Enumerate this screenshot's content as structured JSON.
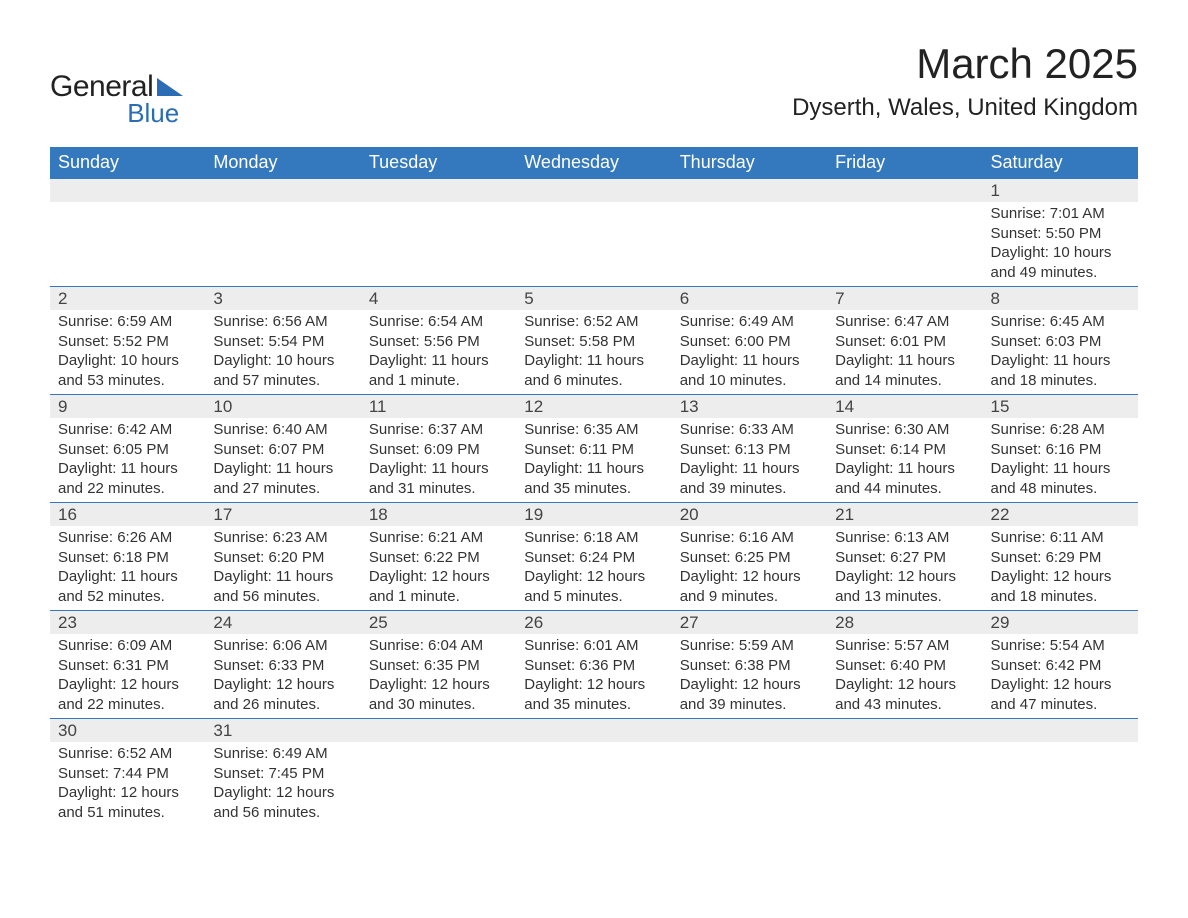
{
  "brand": {
    "word1": "General",
    "word2": "Blue",
    "accent_color": "#2a6db4"
  },
  "title": "March 2025",
  "location": "Dyserth, Wales, United Kingdom",
  "colors": {
    "header_bg": "#3478bd",
    "header_text": "#ffffff",
    "daynum_bg": "#ededed",
    "text": "#333333",
    "row_border": "#3478bd",
    "page_bg": "#ffffff"
  },
  "fonts": {
    "base_family": "Arial",
    "month_title_size_pt": 32,
    "location_size_pt": 18,
    "weekday_size_pt": 14,
    "daynum_size_pt": 13,
    "data_size_pt": 11
  },
  "calendar": {
    "type": "table",
    "columns": [
      "Sunday",
      "Monday",
      "Tuesday",
      "Wednesday",
      "Thursday",
      "Friday",
      "Saturday"
    ],
    "weeks": [
      [
        null,
        null,
        null,
        null,
        null,
        null,
        {
          "num": "1",
          "sunrise": "Sunrise: 7:01 AM",
          "sunset": "Sunset: 5:50 PM",
          "day1": "Daylight: 10 hours",
          "day2": "and 49 minutes."
        }
      ],
      [
        {
          "num": "2",
          "sunrise": "Sunrise: 6:59 AM",
          "sunset": "Sunset: 5:52 PM",
          "day1": "Daylight: 10 hours",
          "day2": "and 53 minutes."
        },
        {
          "num": "3",
          "sunrise": "Sunrise: 6:56 AM",
          "sunset": "Sunset: 5:54 PM",
          "day1": "Daylight: 10 hours",
          "day2": "and 57 minutes."
        },
        {
          "num": "4",
          "sunrise": "Sunrise: 6:54 AM",
          "sunset": "Sunset: 5:56 PM",
          "day1": "Daylight: 11 hours",
          "day2": "and 1 minute."
        },
        {
          "num": "5",
          "sunrise": "Sunrise: 6:52 AM",
          "sunset": "Sunset: 5:58 PM",
          "day1": "Daylight: 11 hours",
          "day2": "and 6 minutes."
        },
        {
          "num": "6",
          "sunrise": "Sunrise: 6:49 AM",
          "sunset": "Sunset: 6:00 PM",
          "day1": "Daylight: 11 hours",
          "day2": "and 10 minutes."
        },
        {
          "num": "7",
          "sunrise": "Sunrise: 6:47 AM",
          "sunset": "Sunset: 6:01 PM",
          "day1": "Daylight: 11 hours",
          "day2": "and 14 minutes."
        },
        {
          "num": "8",
          "sunrise": "Sunrise: 6:45 AM",
          "sunset": "Sunset: 6:03 PM",
          "day1": "Daylight: 11 hours",
          "day2": "and 18 minutes."
        }
      ],
      [
        {
          "num": "9",
          "sunrise": "Sunrise: 6:42 AM",
          "sunset": "Sunset: 6:05 PM",
          "day1": "Daylight: 11 hours",
          "day2": "and 22 minutes."
        },
        {
          "num": "10",
          "sunrise": "Sunrise: 6:40 AM",
          "sunset": "Sunset: 6:07 PM",
          "day1": "Daylight: 11 hours",
          "day2": "and 27 minutes."
        },
        {
          "num": "11",
          "sunrise": "Sunrise: 6:37 AM",
          "sunset": "Sunset: 6:09 PM",
          "day1": "Daylight: 11 hours",
          "day2": "and 31 minutes."
        },
        {
          "num": "12",
          "sunrise": "Sunrise: 6:35 AM",
          "sunset": "Sunset: 6:11 PM",
          "day1": "Daylight: 11 hours",
          "day2": "and 35 minutes."
        },
        {
          "num": "13",
          "sunrise": "Sunrise: 6:33 AM",
          "sunset": "Sunset: 6:13 PM",
          "day1": "Daylight: 11 hours",
          "day2": "and 39 minutes."
        },
        {
          "num": "14",
          "sunrise": "Sunrise: 6:30 AM",
          "sunset": "Sunset: 6:14 PM",
          "day1": "Daylight: 11 hours",
          "day2": "and 44 minutes."
        },
        {
          "num": "15",
          "sunrise": "Sunrise: 6:28 AM",
          "sunset": "Sunset: 6:16 PM",
          "day1": "Daylight: 11 hours",
          "day2": "and 48 minutes."
        }
      ],
      [
        {
          "num": "16",
          "sunrise": "Sunrise: 6:26 AM",
          "sunset": "Sunset: 6:18 PM",
          "day1": "Daylight: 11 hours",
          "day2": "and 52 minutes."
        },
        {
          "num": "17",
          "sunrise": "Sunrise: 6:23 AM",
          "sunset": "Sunset: 6:20 PM",
          "day1": "Daylight: 11 hours",
          "day2": "and 56 minutes."
        },
        {
          "num": "18",
          "sunrise": "Sunrise: 6:21 AM",
          "sunset": "Sunset: 6:22 PM",
          "day1": "Daylight: 12 hours",
          "day2": "and 1 minute."
        },
        {
          "num": "19",
          "sunrise": "Sunrise: 6:18 AM",
          "sunset": "Sunset: 6:24 PM",
          "day1": "Daylight: 12 hours",
          "day2": "and 5 minutes."
        },
        {
          "num": "20",
          "sunrise": "Sunrise: 6:16 AM",
          "sunset": "Sunset: 6:25 PM",
          "day1": "Daylight: 12 hours",
          "day2": "and 9 minutes."
        },
        {
          "num": "21",
          "sunrise": "Sunrise: 6:13 AM",
          "sunset": "Sunset: 6:27 PM",
          "day1": "Daylight: 12 hours",
          "day2": "and 13 minutes."
        },
        {
          "num": "22",
          "sunrise": "Sunrise: 6:11 AM",
          "sunset": "Sunset: 6:29 PM",
          "day1": "Daylight: 12 hours",
          "day2": "and 18 minutes."
        }
      ],
      [
        {
          "num": "23",
          "sunrise": "Sunrise: 6:09 AM",
          "sunset": "Sunset: 6:31 PM",
          "day1": "Daylight: 12 hours",
          "day2": "and 22 minutes."
        },
        {
          "num": "24",
          "sunrise": "Sunrise: 6:06 AM",
          "sunset": "Sunset: 6:33 PM",
          "day1": "Daylight: 12 hours",
          "day2": "and 26 minutes."
        },
        {
          "num": "25",
          "sunrise": "Sunrise: 6:04 AM",
          "sunset": "Sunset: 6:35 PM",
          "day1": "Daylight: 12 hours",
          "day2": "and 30 minutes."
        },
        {
          "num": "26",
          "sunrise": "Sunrise: 6:01 AM",
          "sunset": "Sunset: 6:36 PM",
          "day1": "Daylight: 12 hours",
          "day2": "and 35 minutes."
        },
        {
          "num": "27",
          "sunrise": "Sunrise: 5:59 AM",
          "sunset": "Sunset: 6:38 PM",
          "day1": "Daylight: 12 hours",
          "day2": "and 39 minutes."
        },
        {
          "num": "28",
          "sunrise": "Sunrise: 5:57 AM",
          "sunset": "Sunset: 6:40 PM",
          "day1": "Daylight: 12 hours",
          "day2": "and 43 minutes."
        },
        {
          "num": "29",
          "sunrise": "Sunrise: 5:54 AM",
          "sunset": "Sunset: 6:42 PM",
          "day1": "Daylight: 12 hours",
          "day2": "and 47 minutes."
        }
      ],
      [
        {
          "num": "30",
          "sunrise": "Sunrise: 6:52 AM",
          "sunset": "Sunset: 7:44 PM",
          "day1": "Daylight: 12 hours",
          "day2": "and 51 minutes."
        },
        {
          "num": "31",
          "sunrise": "Sunrise: 6:49 AM",
          "sunset": "Sunset: 7:45 PM",
          "day1": "Daylight: 12 hours",
          "day2": "and 56 minutes."
        },
        null,
        null,
        null,
        null,
        null
      ]
    ]
  }
}
